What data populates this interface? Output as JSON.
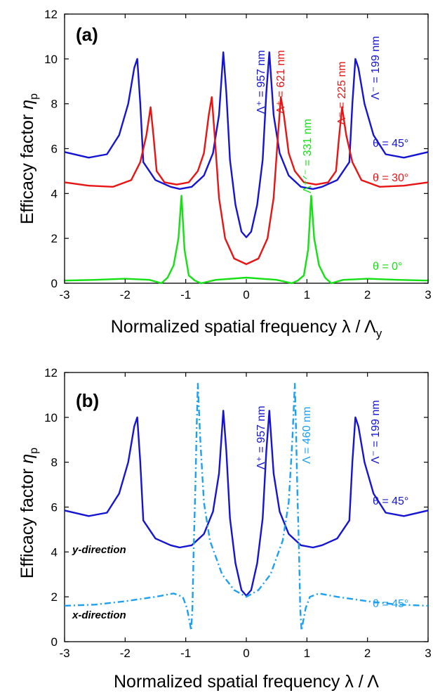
{
  "chart_data": [
    {
      "type": "line",
      "panel_label": "(a)",
      "xlabel": "Normalized spatial frequency λ / Λy",
      "xlabel_main": "Normalized spatial frequency λ / Λ",
      "xlabel_sub": "y",
      "ylabel_text": "Efficacy factor",
      "ylabel_symbol": "η",
      "ylabel_sub": "p",
      "xlim": [
        -3,
        3
      ],
      "ylim": [
        0,
        12
      ],
      "xticks": [
        "-3",
        "-2",
        "-1",
        "0",
        "1",
        "2",
        "3"
      ],
      "yticks": [
        "0",
        "2",
        "4",
        "6",
        "8",
        "10",
        "12"
      ],
      "series": [
        {
          "name": "θ = 45°",
          "color": "#1414d2",
          "points": [
            [
              -3,
              5.85
            ],
            [
              -2.6,
              5.6
            ],
            [
              -2.3,
              5.75
            ],
            [
              -2.1,
              6.6
            ],
            [
              -1.95,
              8.0
            ],
            [
              -1.85,
              9.6
            ],
            [
              -1.8,
              10.0
            ],
            [
              -1.75,
              8.0
            ],
            [
              -1.7,
              5.4
            ],
            [
              -1.5,
              4.6
            ],
            [
              -1.25,
              4.3
            ],
            [
              -1.1,
              4.2
            ],
            [
              -0.9,
              4.3
            ],
            [
              -0.7,
              4.8
            ],
            [
              -0.55,
              5.8
            ],
            [
              -0.45,
              7.5
            ],
            [
              -0.38,
              10.3
            ],
            [
              -0.33,
              8.5
            ],
            [
              -0.27,
              5.5
            ],
            [
              -0.18,
              3.5
            ],
            [
              -0.08,
              2.3
            ],
            [
              0,
              2.05
            ],
            [
              0.08,
              2.3
            ],
            [
              0.18,
              3.5
            ],
            [
              0.27,
              5.5
            ],
            [
              0.33,
              8.5
            ],
            [
              0.38,
              10.3
            ],
            [
              0.45,
              7.5
            ],
            [
              0.55,
              5.8
            ],
            [
              0.7,
              4.8
            ],
            [
              0.9,
              4.3
            ],
            [
              1.1,
              4.2
            ],
            [
              1.25,
              4.3
            ],
            [
              1.5,
              4.6
            ],
            [
              1.7,
              5.4
            ],
            [
              1.75,
              8.0
            ],
            [
              1.8,
              10.0
            ],
            [
              1.85,
              9.6
            ],
            [
              1.95,
              8.0
            ],
            [
              2.1,
              6.6
            ],
            [
              2.3,
              5.75
            ],
            [
              2.6,
              5.6
            ],
            [
              3,
              5.85
            ]
          ]
        },
        {
          "name": "θ = 30°",
          "color": "#e81414",
          "points": [
            [
              -3,
              4.5
            ],
            [
              -2.6,
              4.35
            ],
            [
              -2.2,
              4.3
            ],
            [
              -1.9,
              4.6
            ],
            [
              -1.75,
              5.4
            ],
            [
              -1.65,
              6.6
            ],
            [
              -1.58,
              7.85
            ],
            [
              -1.53,
              6.5
            ],
            [
              -1.48,
              5.0
            ],
            [
              -1.35,
              4.5
            ],
            [
              -1.15,
              4.4
            ],
            [
              -0.95,
              4.5
            ],
            [
              -0.8,
              5.0
            ],
            [
              -0.7,
              5.8
            ],
            [
              -0.62,
              7.5
            ],
            [
              -0.57,
              8.3
            ],
            [
              -0.52,
              6.5
            ],
            [
              -0.45,
              3.8
            ],
            [
              -0.35,
              2.0
            ],
            [
              -0.2,
              1.1
            ],
            [
              0,
              0.85
            ],
            [
              0.2,
              1.1
            ],
            [
              0.35,
              2.0
            ],
            [
              0.45,
              3.8
            ],
            [
              0.52,
              6.5
            ],
            [
              0.57,
              8.3
            ],
            [
              0.62,
              7.5
            ],
            [
              0.7,
              5.8
            ],
            [
              0.8,
              5.0
            ],
            [
              0.95,
              4.5
            ],
            [
              1.15,
              4.4
            ],
            [
              1.35,
              4.5
            ],
            [
              1.48,
              5.0
            ],
            [
              1.53,
              6.5
            ],
            [
              1.58,
              7.85
            ],
            [
              1.65,
              6.6
            ],
            [
              1.75,
              5.4
            ],
            [
              1.9,
              4.6
            ],
            [
              2.2,
              4.3
            ],
            [
              2.6,
              4.35
            ],
            [
              3,
              4.5
            ]
          ]
        },
        {
          "name": "θ = 0°",
          "color": "#14e014",
          "points": [
            [
              -3,
              0.12
            ],
            [
              -2.5,
              0.15
            ],
            [
              -2.0,
              0.2
            ],
            [
              -1.6,
              0.15
            ],
            [
              -1.4,
              0.0
            ],
            [
              -1.3,
              0.25
            ],
            [
              -1.2,
              0.8
            ],
            [
              -1.12,
              2.0
            ],
            [
              -1.07,
              3.9
            ],
            [
              -1.02,
              1.5
            ],
            [
              -0.95,
              0.35
            ],
            [
              -0.85,
              0.12
            ],
            [
              -0.75,
              0.0
            ],
            [
              -0.5,
              0.15
            ],
            [
              0,
              0.25
            ],
            [
              0.5,
              0.15
            ],
            [
              0.75,
              0.0
            ],
            [
              0.85,
              0.12
            ],
            [
              0.95,
              0.35
            ],
            [
              1.02,
              1.5
            ],
            [
              1.07,
              3.9
            ],
            [
              1.12,
              2.0
            ],
            [
              1.2,
              0.8
            ],
            [
              1.3,
              0.25
            ],
            [
              1.4,
              0.0
            ],
            [
              1.6,
              0.15
            ],
            [
              2.0,
              0.2
            ],
            [
              2.5,
              0.15
            ],
            [
              3,
              0.12
            ]
          ]
        }
      ],
      "annotations": [
        {
          "text": "Λ⁺ = 957 nm",
          "color": "#1414d2"
        },
        {
          "text": "Λ⁺ = 621 nm",
          "color": "#e81414"
        },
        {
          "text": "Λ⁺ᐟ⁻ = 331 nm",
          "color": "#14e014"
        },
        {
          "text": "Λ⁻ = 225 nm",
          "color": "#e81414"
        },
        {
          "text": "Λ⁻ = 199 nm",
          "color": "#1414d2"
        },
        {
          "text": "θ = 45°",
          "color": "#1414d2"
        },
        {
          "text": "θ = 30°",
          "color": "#e81414"
        },
        {
          "text": "θ = 0°",
          "color": "#14e014"
        }
      ]
    },
    {
      "type": "line",
      "panel_label": "(b)",
      "xlabel": "Normalized spatial frequency λ / Λ",
      "xlabel_main": "Normalized spatial frequency λ / Λ",
      "xlabel_sub": "",
      "ylabel_text": "Efficacy factor",
      "ylabel_symbol": "η",
      "ylabel_sub": "p",
      "xlim": [
        -3,
        3
      ],
      "ylim": [
        0,
        12
      ],
      "xticks": [
        "-3",
        "-2",
        "-1",
        "0",
        "1",
        "2",
        "3"
      ],
      "yticks": [
        "0",
        "2",
        "4",
        "6",
        "8",
        "10",
        "12"
      ],
      "series": [
        {
          "name": "y-direction",
          "color": "#1414d2",
          "dash": "none",
          "points": [
            [
              -3,
              5.85
            ],
            [
              -2.6,
              5.6
            ],
            [
              -2.3,
              5.75
            ],
            [
              -2.1,
              6.6
            ],
            [
              -1.95,
              8.0
            ],
            [
              -1.85,
              9.6
            ],
            [
              -1.8,
              10.0
            ],
            [
              -1.75,
              8.0
            ],
            [
              -1.7,
              5.4
            ],
            [
              -1.5,
              4.6
            ],
            [
              -1.25,
              4.3
            ],
            [
              -1.1,
              4.2
            ],
            [
              -0.9,
              4.3
            ],
            [
              -0.7,
              4.8
            ],
            [
              -0.55,
              5.8
            ],
            [
              -0.45,
              7.5
            ],
            [
              -0.38,
              10.3
            ],
            [
              -0.33,
              8.5
            ],
            [
              -0.27,
              5.5
            ],
            [
              -0.18,
              3.5
            ],
            [
              -0.08,
              2.3
            ],
            [
              0,
              2.05
            ],
            [
              0.08,
              2.3
            ],
            [
              0.18,
              3.5
            ],
            [
              0.27,
              5.5
            ],
            [
              0.33,
              8.5
            ],
            [
              0.38,
              10.3
            ],
            [
              0.45,
              7.5
            ],
            [
              0.55,
              5.8
            ],
            [
              0.7,
              4.8
            ],
            [
              0.9,
              4.3
            ],
            [
              1.1,
              4.2
            ],
            [
              1.25,
              4.3
            ],
            [
              1.5,
              4.6
            ],
            [
              1.7,
              5.4
            ],
            [
              1.75,
              8.0
            ],
            [
              1.8,
              10.0
            ],
            [
              1.85,
              9.6
            ],
            [
              1.95,
              8.0
            ],
            [
              2.1,
              6.6
            ],
            [
              2.3,
              5.75
            ],
            [
              2.6,
              5.6
            ],
            [
              3,
              5.85
            ]
          ]
        },
        {
          "name": "x-direction",
          "color": "#1ea0f0",
          "dash": "9,4,2,4",
          "points": [
            [
              -3,
              1.6
            ],
            [
              -2.5,
              1.65
            ],
            [
              -2.0,
              1.8
            ],
            [
              -1.5,
              2.0
            ],
            [
              -1.2,
              2.15
            ],
            [
              -1.05,
              2.0
            ],
            [
              -0.98,
              1.5
            ],
            [
              -0.93,
              0.8
            ],
            [
              -0.91,
              0.5
            ],
            [
              -0.89,
              1.5
            ],
            [
              -0.87,
              4.0
            ],
            [
              -0.84,
              7.0
            ],
            [
              -0.82,
              9.5
            ],
            [
              -0.8,
              11.5
            ],
            [
              -0.76,
              9.0
            ],
            [
              -0.7,
              6.2
            ],
            [
              -0.6,
              4.5
            ],
            [
              -0.4,
              3.0
            ],
            [
              -0.2,
              2.3
            ],
            [
              0,
              2.0
            ],
            [
              0.2,
              2.3
            ],
            [
              0.4,
              3.0
            ],
            [
              0.6,
              4.5
            ],
            [
              0.7,
              6.2
            ],
            [
              0.76,
              9.0
            ],
            [
              0.8,
              11.5
            ],
            [
              0.82,
              9.5
            ],
            [
              0.84,
              7.0
            ],
            [
              0.87,
              4.0
            ],
            [
              0.89,
              1.5
            ],
            [
              0.91,
              0.5
            ],
            [
              0.93,
              0.8
            ],
            [
              0.98,
              1.5
            ],
            [
              1.05,
              2.0
            ],
            [
              1.2,
              2.15
            ],
            [
              1.5,
              2.0
            ],
            [
              2.0,
              1.8
            ],
            [
              2.5,
              1.65
            ],
            [
              3,
              1.6
            ]
          ]
        }
      ],
      "annotations": [
        {
          "text": "Λ⁺ = 957 nm",
          "color": "#1414d2"
        },
        {
          "text": "Λ = 460 nm",
          "color": "#1ea0f0"
        },
        {
          "text": "Λ⁻ = 199 nm",
          "color": "#1414d2"
        },
        {
          "text": "θ = 45°",
          "color": "#1414d2"
        },
        {
          "text": "y-direction",
          "color": "#000000"
        },
        {
          "text": "θ = 45°",
          "color": "#1ea0f0"
        },
        {
          "text": "x-direction",
          "color": "#000000"
        }
      ]
    }
  ]
}
